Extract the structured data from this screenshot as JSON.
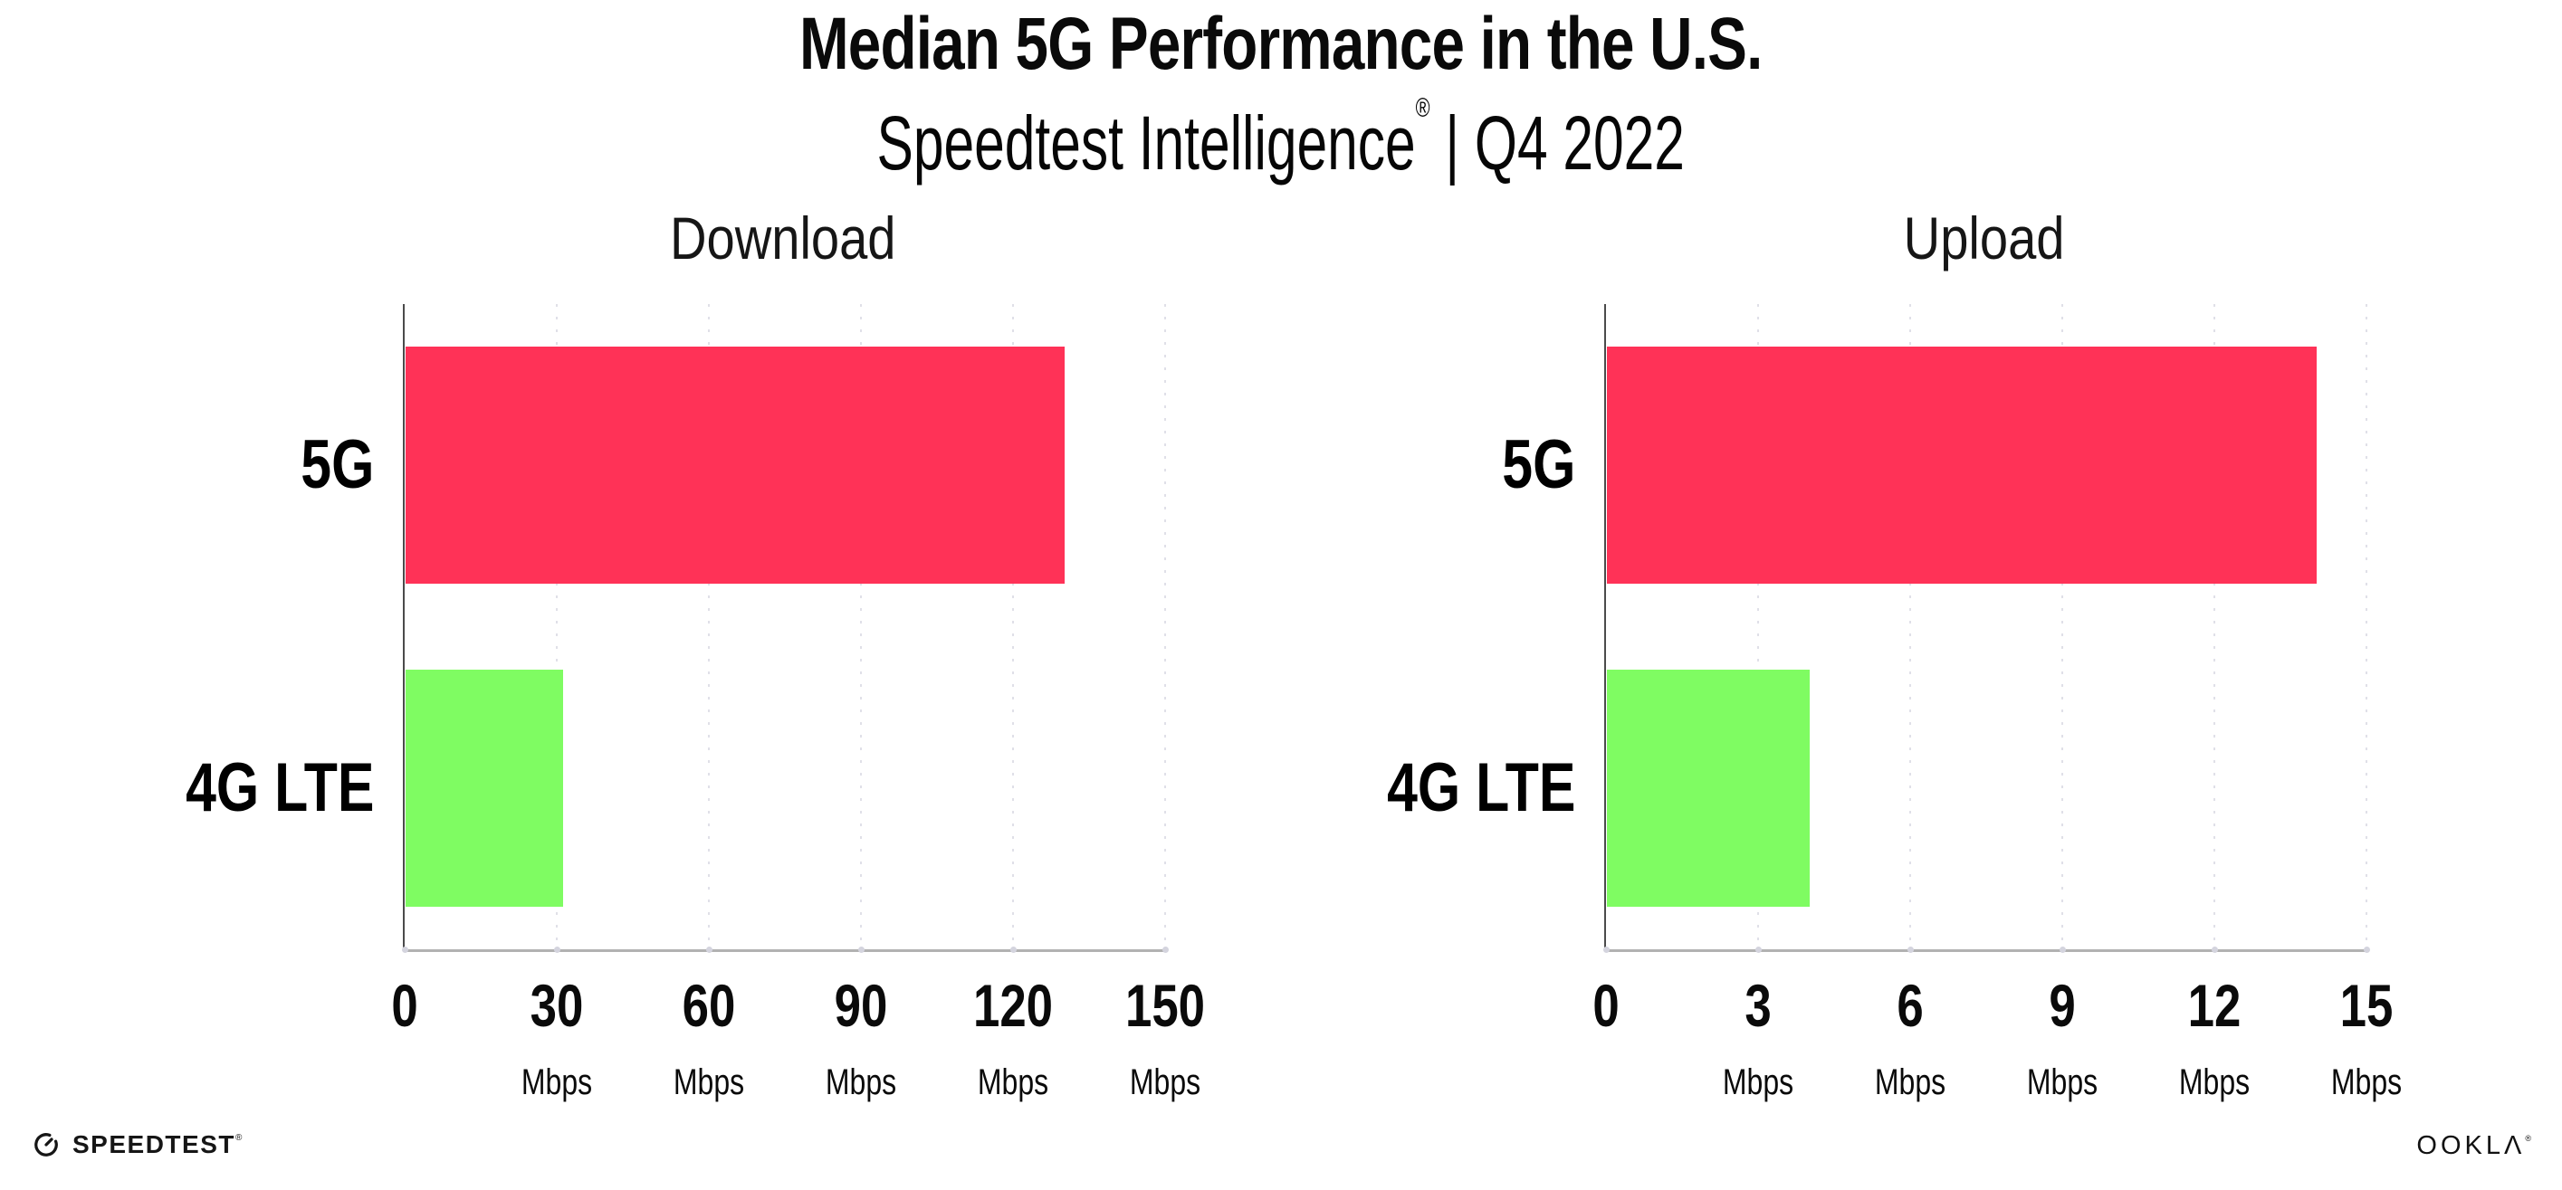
{
  "title": "Median 5G Performance in the U.S.",
  "subtitle": {
    "brand": "Speedtest Intelligence",
    "mark": "®",
    "period": "| Q4 2022"
  },
  "footer": {
    "speedtest_label": "SPEEDTEST",
    "speedtest_mark": "®",
    "ookla_label": "OOKLΛ",
    "ookla_mark": "®"
  },
  "colors": {
    "bar_5g": "#ff3257",
    "bar_4g": "#7ffc62",
    "gridline": "#e0e0e8",
    "axis_line": "#b2b2b2",
    "spine": "#4b4b4b"
  },
  "chart_data": [
    {
      "type": "bar",
      "orientation": "horizontal",
      "title": "Download",
      "categories": [
        "5G",
        "4G LTE"
      ],
      "values": [
        130,
        31
      ],
      "unit": "Mbps",
      "xlim": [
        0,
        150
      ],
      "xticks": [
        0,
        30,
        60,
        90,
        120,
        150
      ],
      "grid": "dotted-vertical",
      "legend": "none"
    },
    {
      "type": "bar",
      "orientation": "horizontal",
      "title": "Upload",
      "categories": [
        "5G",
        "4G LTE"
      ],
      "values": [
        14,
        4
      ],
      "unit": "Mbps",
      "xlim": [
        0,
        15
      ],
      "xticks": [
        0,
        3,
        6,
        9,
        12,
        15
      ],
      "grid": "dotted-vertical",
      "legend": "none"
    }
  ]
}
